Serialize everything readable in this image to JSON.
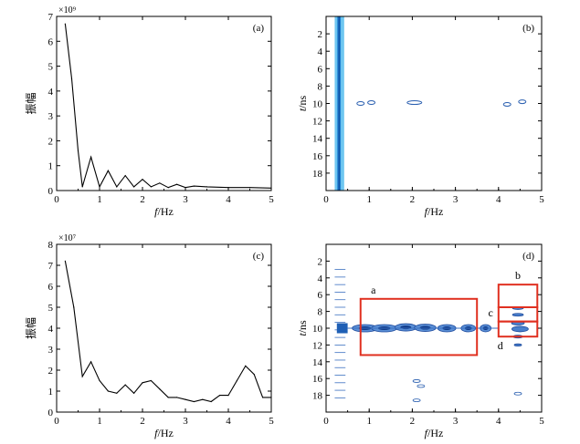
{
  "chart_data": [
    {
      "panel": "(a)",
      "type": "line",
      "xlabel_italic": "f",
      "xlabel_unit": "/Hz",
      "ylabel": "振幅",
      "exponent": "×10⁹",
      "xlim": [
        0,
        5
      ],
      "ylim": [
        0,
        7
      ],
      "xticks": [
        "0",
        "1",
        "2",
        "3",
        "4",
        "5"
      ],
      "yticks": [
        "0",
        "1",
        "2",
        "3",
        "4",
        "5",
        "6",
        "7"
      ],
      "x": [
        0.2,
        0.35,
        0.5,
        0.6,
        0.8,
        1.0,
        1.2,
        1.4,
        1.6,
        1.8,
        2.0,
        2.2,
        2.4,
        2.6,
        2.8,
        3.0,
        3.2,
        3.5,
        4.0,
        4.5,
        5.0
      ],
      "y": [
        6.7,
        4.5,
        1.6,
        0.15,
        1.35,
        0.15,
        0.8,
        0.15,
        0.6,
        0.15,
        0.45,
        0.15,
        0.3,
        0.12,
        0.25,
        0.12,
        0.18,
        0.15,
        0.12,
        0.12,
        0.1
      ]
    },
    {
      "panel": "(b)",
      "type": "heatmap",
      "xlabel_italic": "f",
      "xlabel_unit": "/Hz",
      "ylabel_italic": "t",
      "ylabel_unit": "/ns",
      "xlim": [
        0,
        5
      ],
      "ylim": [
        0,
        20
      ],
      "xticks": [
        "0",
        "1",
        "2",
        "3",
        "4",
        "5"
      ],
      "yticks": [
        "2",
        "4",
        "6",
        "8",
        "10",
        "12",
        "14",
        "16",
        "18"
      ]
    },
    {
      "panel": "(c)",
      "type": "line",
      "xlabel_italic": "f",
      "xlabel_unit": "/Hz",
      "ylabel": "振幅",
      "exponent": "×10⁷",
      "xlim": [
        0,
        5
      ],
      "ylim": [
        0,
        8
      ],
      "xticks": [
        "0",
        "1",
        "2",
        "3",
        "4",
        "5"
      ],
      "yticks": [
        "0",
        "1",
        "2",
        "3",
        "4",
        "5",
        "6",
        "7",
        "8"
      ],
      "x": [
        0.2,
        0.4,
        0.6,
        0.8,
        1.0,
        1.2,
        1.4,
        1.6,
        1.8,
        2.0,
        2.2,
        2.4,
        2.6,
        2.8,
        3.0,
        3.2,
        3.4,
        3.6,
        3.8,
        4.0,
        4.2,
        4.4,
        4.6,
        4.8,
        5.0
      ],
      "y": [
        7.2,
        5.0,
        1.7,
        2.4,
        1.5,
        1.0,
        0.9,
        1.3,
        0.9,
        1.4,
        1.5,
        1.1,
        0.7,
        0.7,
        0.6,
        0.5,
        0.6,
        0.5,
        0.8,
        0.8,
        1.5,
        2.2,
        1.8,
        0.7,
        0.7
      ]
    },
    {
      "panel": "(d)",
      "type": "heatmap",
      "xlabel_italic": "f",
      "xlabel_unit": "/Hz",
      "ylabel_italic": "t",
      "ylabel_unit": "/ns",
      "xlim": [
        0,
        5
      ],
      "ylim": [
        0,
        20
      ],
      "xticks": [
        "0",
        "1",
        "2",
        "3",
        "4",
        "5"
      ],
      "yticks": [
        "2",
        "4",
        "6",
        "8",
        "10",
        "12",
        "14",
        "16",
        "18"
      ],
      "annotations": [
        {
          "label": "a",
          "box_f": [
            0.8,
            3.5
          ],
          "box_t": [
            6.5,
            13.2
          ]
        },
        {
          "label": "b",
          "box_f": [
            4.0,
            4.9
          ],
          "box_t": [
            4.8,
            7.5
          ]
        },
        {
          "label": "c",
          "box_f": [
            4.0,
            4.9
          ],
          "box_t": [
            7.5,
            9.2
          ]
        },
        {
          "label": "d",
          "box_f": [
            4.0,
            4.9
          ],
          "box_t": [
            9.2,
            11.0
          ]
        }
      ]
    }
  ]
}
